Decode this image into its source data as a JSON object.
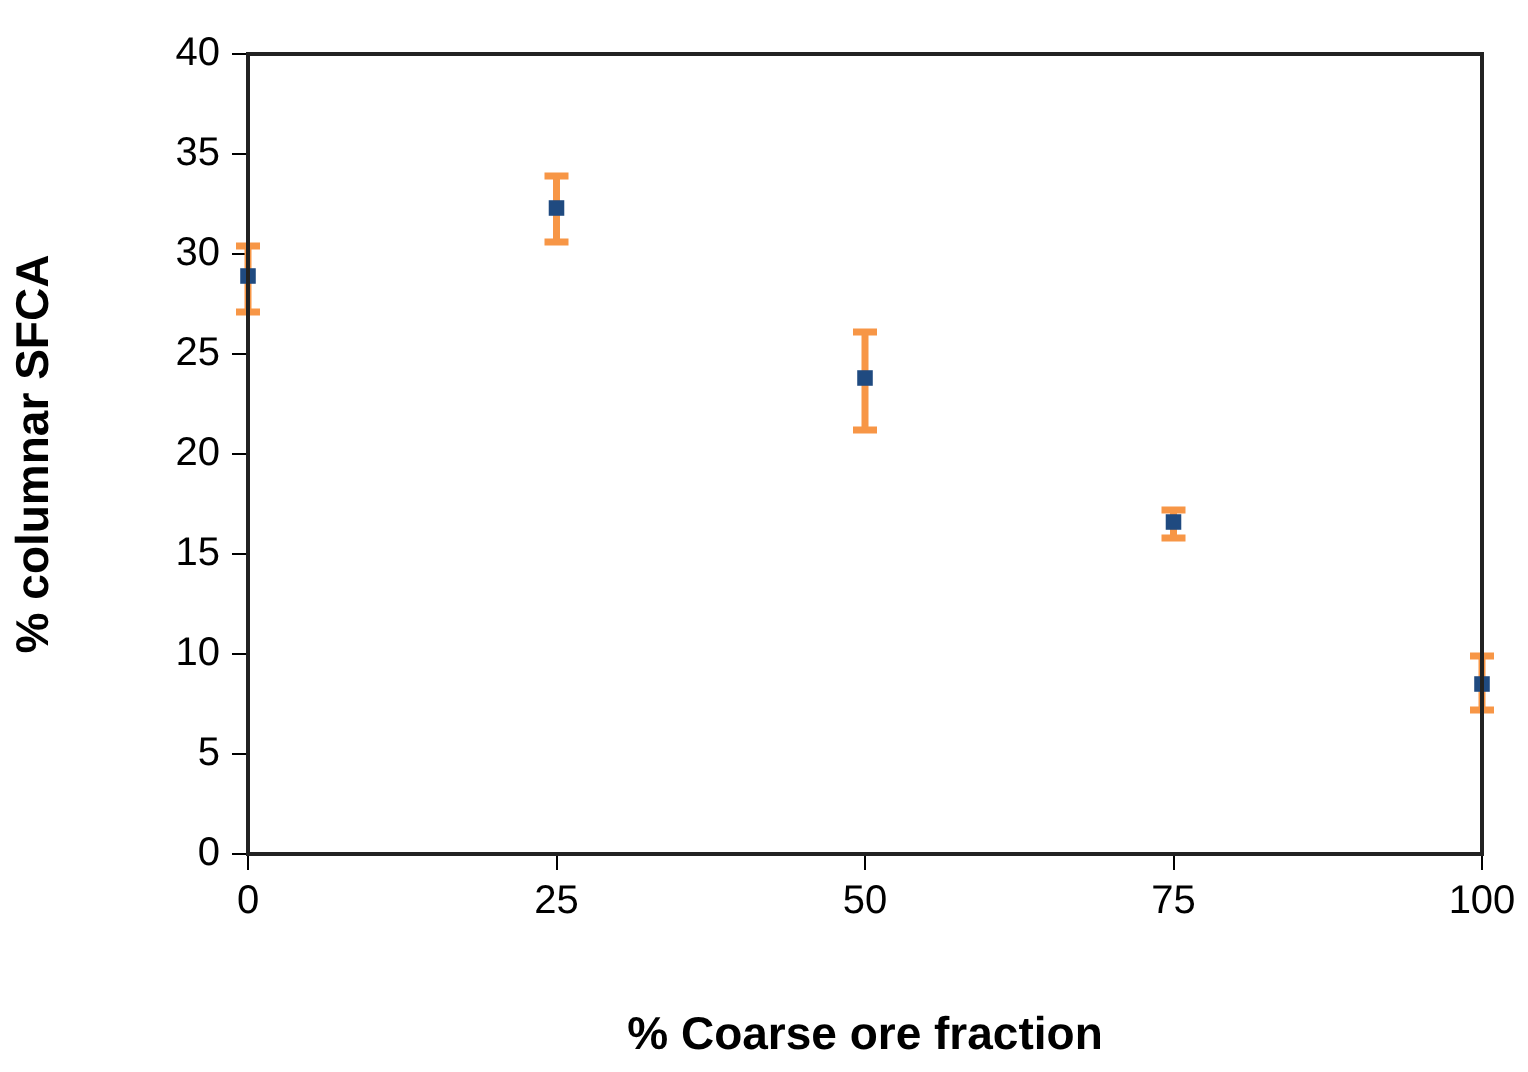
{
  "chart_data": {
    "type": "scatter",
    "xlabel": "% Coarse ore fraction",
    "ylabel": "% columnar SFCA",
    "x": [
      0,
      25,
      50,
      75,
      100
    ],
    "series": [
      {
        "color": "#1f4a80",
        "values": [
          28.9,
          32.3,
          23.8,
          16.6,
          8.5
        ],
        "errors": [
          [
            27.1,
            30.4
          ],
          [
            30.6,
            33.9
          ],
          [
            21.2,
            26.1
          ],
          [
            15.8,
            17.2
          ],
          [
            7.2,
            9.9
          ]
        ]
      }
    ],
    "xlim": [
      0,
      100
    ],
    "xticks": [
      0,
      25,
      50,
      75,
      100
    ],
    "ylim": [
      0,
      40
    ],
    "yticks": [
      0,
      5,
      10,
      15,
      20,
      25,
      30,
      35,
      40
    ],
    "grid": false,
    "legend": false,
    "marker": "square"
  }
}
